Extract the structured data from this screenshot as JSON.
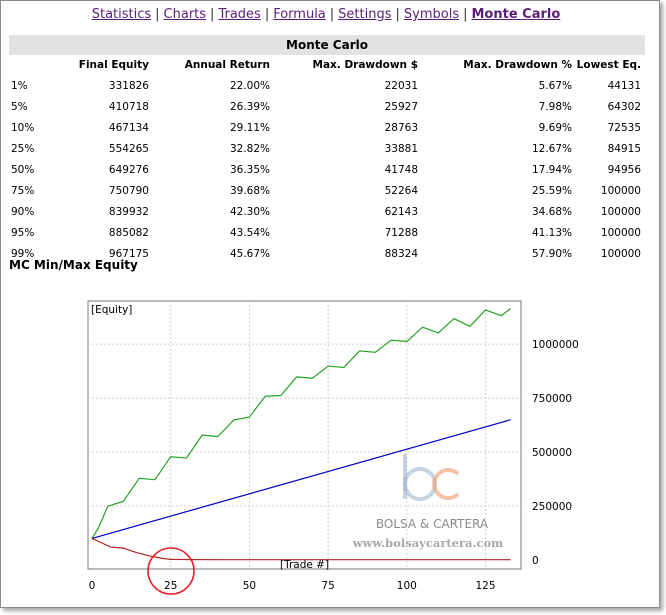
{
  "nav": {
    "items": [
      {
        "label": "Statistics"
      },
      {
        "label": "Charts"
      },
      {
        "label": "Trades"
      },
      {
        "label": "Formula"
      },
      {
        "label": "Settings"
      },
      {
        "label": "Symbols"
      },
      {
        "label": "Monte Carlo"
      }
    ],
    "active": "Monte Carlo"
  },
  "table": {
    "title": "Monte Carlo",
    "columns": [
      "",
      "Final Equity",
      "Annual Return",
      "Max. Drawdown $",
      "Max. Drawdown %",
      "Lowest Eq."
    ],
    "rows": [
      [
        "1%",
        "331826",
        "22.00%",
        "22031",
        "5.67%",
        "44131"
      ],
      [
        "5%",
        "410718",
        "26.39%",
        "25927",
        "7.98%",
        "64302"
      ],
      [
        "10%",
        "467134",
        "29.11%",
        "28763",
        "9.69%",
        "72535"
      ],
      [
        "25%",
        "554265",
        "32.82%",
        "33881",
        "12.67%",
        "84915"
      ],
      [
        "50%",
        "649276",
        "36.35%",
        "41748",
        "17.94%",
        "94956"
      ],
      [
        "75%",
        "750790",
        "39.68%",
        "52264",
        "25.59%",
        "100000"
      ],
      [
        "90%",
        "839932",
        "42.30%",
        "62143",
        "34.68%",
        "100000"
      ],
      [
        "95%",
        "885082",
        "43.54%",
        "71288",
        "41.13%",
        "100000"
      ],
      [
        "99%",
        "967175",
        "45.67%",
        "88324",
        "57.90%",
        "100000"
      ]
    ]
  },
  "chart_section_title": "MC Min/Max Equity",
  "watermark": {
    "logo_text": "bc",
    "name": "BOLSA & CARTERA",
    "url": "www.bolsaycartera.com"
  },
  "chart_data": {
    "type": "line",
    "title": "",
    "ylabel": "[Equity]",
    "xlabel": "[Trade #]",
    "xlim": [
      0,
      135
    ],
    "ylim": [
      0,
      1200000
    ],
    "x_ticks": [
      "0",
      "25",
      "50",
      "75",
      "100",
      "125"
    ],
    "x_tick_values": [
      0,
      25,
      50,
      75,
      100,
      125
    ],
    "y_ticks": [
      "0",
      "250000",
      "500000",
      "750000",
      "1000000"
    ],
    "y_tick_values": [
      0,
      250000,
      500000,
      750000,
      1000000
    ],
    "grid": true,
    "series": [
      {
        "color": "#22a322",
        "x": [
          0,
          2,
          5,
          10,
          15,
          20,
          25,
          30,
          35,
          40,
          45,
          50,
          55,
          60,
          65,
          70,
          75,
          80,
          85,
          90,
          95,
          100,
          105,
          110,
          115,
          120,
          125,
          130,
          133
        ],
        "values": [
          100000,
          175000,
          230000,
          300000,
          360000,
          400000,
          460000,
          500000,
          560000,
          600000,
          630000,
          690000,
          740000,
          790000,
          830000,
          870000,
          880000,
          920000,
          950000,
          990000,
          1000000,
          1040000,
          1060000,
          1080000,
          1100000,
          1110000,
          1140000,
          1160000,
          1165000
        ]
      },
      {
        "color": "#0000cc",
        "x": [
          0,
          133
        ],
        "values": [
          100000,
          650000
        ]
      },
      {
        "color": "#b22222",
        "x": [
          0,
          3,
          6,
          10,
          14,
          18,
          22,
          25,
          30,
          40,
          60,
          80,
          100,
          120,
          133
        ],
        "values": [
          100000,
          80000,
          60000,
          55000,
          35000,
          20000,
          8000,
          3000,
          2000,
          1500,
          1500,
          1500,
          1500,
          1500,
          1500
        ]
      }
    ]
  },
  "annotation": {
    "color": "#e8222a"
  }
}
